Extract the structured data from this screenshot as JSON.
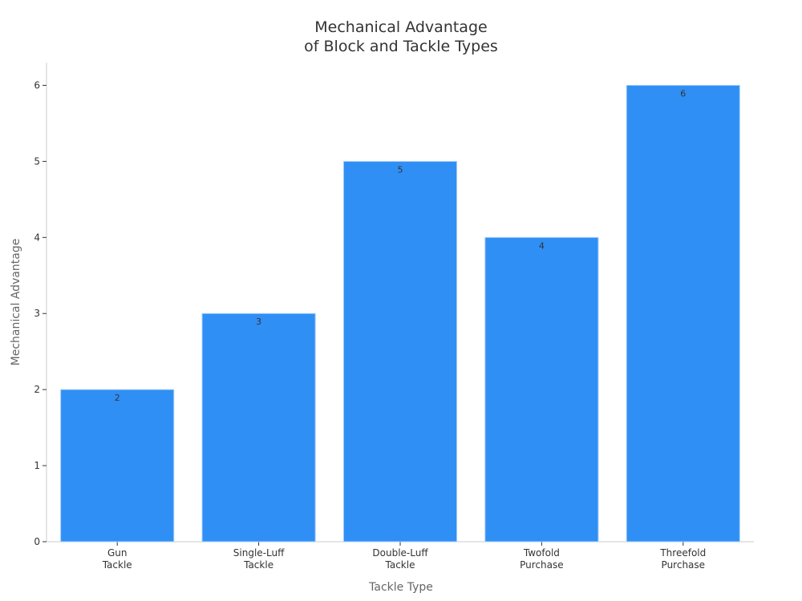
{
  "chart_data": {
    "type": "bar",
    "title": "Mechanical Advantage\nof Block and Tackle Types",
    "x_label": "Tackle Type",
    "y_label": "Mechanical Advantage",
    "categories": [
      "Gun\nTackle",
      "Single-Luff\nTackle",
      "Double-Luff\nTackle",
      "Twofold\nPurchase",
      "Threefold\nPurchase"
    ],
    "values": [
      2,
      3,
      5,
      4,
      6
    ],
    "color": "#2f8ff5",
    "ylim": [
      0,
      6.3
    ],
    "yticks": [
      0,
      1,
      2,
      3,
      4,
      5,
      6
    ],
    "grid": false
  }
}
